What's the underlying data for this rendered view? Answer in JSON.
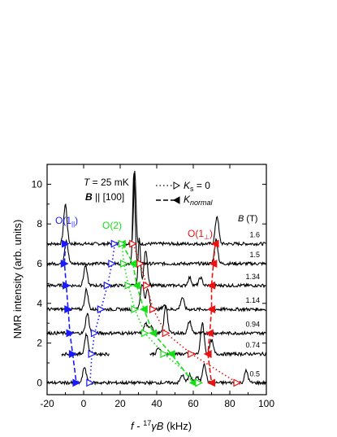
{
  "chart_data": {
    "type": "line",
    "xlabel_parts": {
      "f": "f",
      "dash": " - ",
      "sup": "17",
      "gamma": "γ",
      "B": "B",
      "unit": " (kHz)"
    },
    "ylabel": "NMR intensity (arb. units)",
    "xlim": [
      -20,
      100
    ],
    "ylim": [
      -0.6,
      11
    ],
    "xticks": [
      -20,
      0,
      20,
      40,
      60,
      80,
      100
    ],
    "yticks": [
      0,
      2,
      4,
      6,
      8,
      10
    ],
    "annotations": {
      "temperature": "T = 25 mK",
      "field_dir": "B || [100]",
      "legend_ks0": "K_s = 0",
      "legend_knormal": "K_normal",
      "o1par": "O(1||)",
      "o2": "O(2)",
      "o1perp": "O(1⊥)",
      "btitle": "B (T)"
    },
    "fields": [
      {
        "B": "1.6",
        "offset": 7.0,
        "peaks": [
          [
            -10,
            2.0
          ],
          [
            28,
            3.7
          ],
          [
            73,
            1.4
          ]
        ]
      },
      {
        "B": "1.5",
        "offset": 6.0,
        "peaks": [
          [
            -9.5,
            1.2
          ],
          [
            27.5,
            4.6
          ],
          [
            72.5,
            1.2
          ]
        ]
      },
      {
        "B": "1.34",
        "offset": 4.9,
        "peaks": [
          [
            1,
            1.0
          ],
          [
            30.5,
            2.4
          ],
          [
            34,
            1.8
          ],
          [
            58,
            0.4
          ],
          [
            64,
            0.4
          ]
        ]
      },
      {
        "B": "1.14",
        "offset": 3.7,
        "peaks": [
          [
            1.5,
            1.0
          ],
          [
            32,
            1.3
          ],
          [
            35,
            1.0
          ],
          [
            44,
            0.2
          ],
          [
            54,
            0.6
          ]
        ]
      },
      {
        "B": "0.94",
        "offset": 2.5,
        "peaks": [
          [
            2,
            1.0
          ],
          [
            34,
            0.5
          ],
          [
            37,
            0.4
          ],
          [
            45,
            1.4
          ],
          [
            58,
            0.6
          ]
        ]
      },
      {
        "B": "0.74",
        "offset": 1.45,
        "peaks": [
          [
            1.5,
            1.0
          ],
          [
            41,
            0.3
          ],
          [
            65,
            1.6
          ],
          [
            70,
            0.7
          ]
        ]
      },
      {
        "B": "0.5",
        "offset": 0.0,
        "peaks": [
          [
            0.5,
            0.8
          ],
          [
            54,
            0.4
          ],
          [
            58,
            0.4
          ],
          [
            62,
            0.3
          ],
          [
            66,
            1.0
          ],
          [
            89,
            0.6
          ]
        ]
      }
    ],
    "series": [
      {
        "name": "O(1||) K_normal",
        "color": "#1a1aff",
        "style": "dashed",
        "filled": true,
        "points": [
          [
            -10,
            7.0
          ],
          [
            -10.5,
            6.0
          ],
          [
            -9.5,
            4.9
          ],
          [
            -8.5,
            3.7
          ],
          [
            -7.5,
            2.5
          ],
          [
            -6,
            1.45
          ],
          [
            -4,
            0.0
          ]
        ]
      },
      {
        "name": "O(1||) K_s=0",
        "color": "#1a1aff",
        "style": "dotted",
        "filled": false,
        "points": [
          [
            17,
            7.0
          ],
          [
            15.5,
            6.0
          ],
          [
            13,
            4.9
          ],
          [
            9.5,
            3.7
          ],
          [
            6,
            2.5
          ],
          [
            4.5,
            1.45
          ],
          [
            3.5,
            0.0
          ]
        ]
      },
      {
        "name": "O(2) K_normal",
        "color": "#16e016",
        "style": "dashed",
        "filled": true,
        "points": [
          [
            21,
            7.0
          ],
          [
            27,
            6.0
          ],
          [
            29,
            4.9
          ],
          [
            33,
            3.7
          ],
          [
            38,
            2.5
          ],
          [
            48,
            1.45
          ],
          [
            60,
            0.0
          ]
        ]
      },
      {
        "name": "O(2) K_s=0",
        "color": "#16e016",
        "style": "dotted",
        "filled": false,
        "points": [
          [
            21,
            7.0
          ],
          [
            22,
            6.0
          ],
          [
            24.5,
            4.9
          ],
          [
            28,
            3.7
          ],
          [
            33.5,
            2.5
          ],
          [
            44,
            1.45
          ],
          [
            63,
            0.0
          ]
        ]
      },
      {
        "name": "O(1⊥) K_normal",
        "color": "#ee1111",
        "style": "dashed",
        "filled": true,
        "points": [
          [
            72,
            7.0
          ],
          [
            71,
            6.0
          ],
          [
            70,
            4.9
          ],
          [
            70,
            3.7
          ],
          [
            69,
            2.5
          ],
          [
            68,
            1.45
          ],
          [
            70,
            0.0
          ]
        ]
      },
      {
        "name": "O(1⊥) K_s=0",
        "color": "#ee1111",
        "style": "dotted",
        "filled": false,
        "points": [
          [
            27,
            7.0
          ],
          [
            31,
            6.0
          ],
          [
            34.5,
            4.9
          ],
          [
            38,
            3.7
          ],
          [
            45,
            2.5
          ],
          [
            59,
            1.45
          ],
          [
            84,
            0.0
          ]
        ]
      }
    ]
  }
}
